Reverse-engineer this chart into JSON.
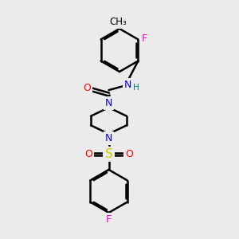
{
  "bg_color": "#ebebeb",
  "bond_color": "#000000",
  "bond_width": 1.8,
  "atom_colors": {
    "C": "#000000",
    "N": "#0000ff",
    "O": "#ff0000",
    "F": "#ff00cc",
    "S": "#cccc00",
    "H": "#008080"
  },
  "font_size": 9,
  "fig_size": [
    3.0,
    3.0
  ],
  "dpi": 100
}
